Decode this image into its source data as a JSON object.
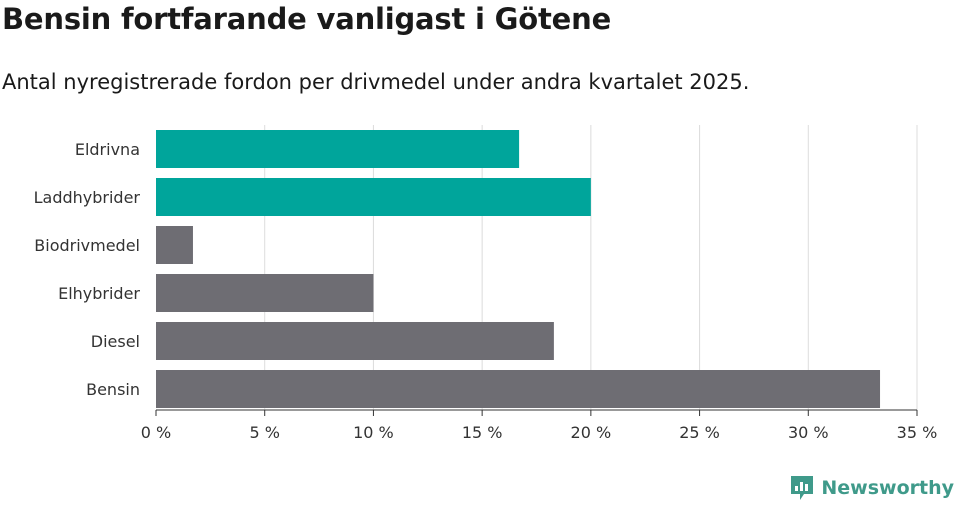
{
  "title": "Bensin fortfarande vanligast i Götene",
  "subtitle": "Antal nyregistrerade fordon per drivmedel under andra kvartalet 2025.",
  "brand": {
    "name": "Newsworthy",
    "icon": "newsworthy-logo-icon",
    "color": "#3f9a8a"
  },
  "chart_data": {
    "type": "bar",
    "orientation": "horizontal",
    "categories": [
      "Eldrivna",
      "Laddhybrider",
      "Biodrivmedel",
      "Elhybrider",
      "Diesel",
      "Bensin"
    ],
    "values": [
      16.7,
      20.0,
      1.7,
      10.0,
      18.3,
      33.3
    ],
    "colors": [
      "#00a59b",
      "#00a59b",
      "#6e6d73",
      "#6e6d73",
      "#6e6d73",
      "#6e6d73"
    ],
    "xlim": [
      0,
      35
    ],
    "xticks": [
      0,
      5,
      10,
      15,
      20,
      25,
      30,
      35
    ],
    "xtick_labels": [
      "0 %",
      "5 %",
      "10 %",
      "15 %",
      "20 %",
      "25 %",
      "30 %",
      "35 %"
    ],
    "xlabel": "",
    "ylabel": "",
    "grid": true,
    "legend": false
  }
}
